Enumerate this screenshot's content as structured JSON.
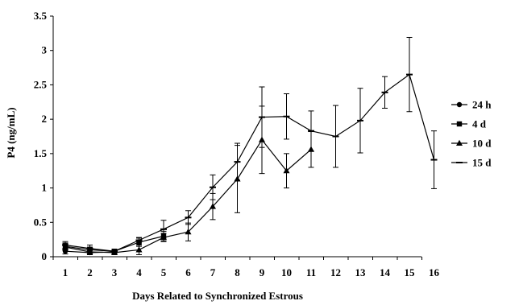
{
  "chart_data": {
    "type": "line",
    "title": "",
    "xlabel": "Days Related to Synchronized Estrous",
    "ylabel": "P4 (ng/mL)",
    "ylim": [
      0,
      3.5
    ],
    "yticks": [
      "0",
      "0.5",
      "1",
      "1.5",
      "2",
      "2.5",
      "3",
      "3.5"
    ],
    "xticks": [
      "1",
      "2",
      "3",
      "4",
      "5",
      "6",
      "7",
      "8",
      "9",
      "10",
      "11",
      "12",
      "13",
      "14",
      "15",
      "16"
    ],
    "legend_position": "right",
    "grid": false,
    "series": [
      {
        "name": "24 h",
        "marker": "circle",
        "points": [
          {
            "x": 1,
            "y": 0.08,
            "err": 0.04
          },
          {
            "x": 2,
            "y": 0.06,
            "err": 0.03
          },
          {
            "x": 3,
            "y": 0.07,
            "err": 0.03
          }
        ]
      },
      {
        "name": "4 d",
        "marker": "square",
        "points": [
          {
            "x": 1,
            "y": 0.15,
            "err": 0.05
          },
          {
            "x": 2,
            "y": 0.1,
            "err": 0.04
          },
          {
            "x": 3,
            "y": 0.08,
            "err": 0.03
          },
          {
            "x": 4,
            "y": 0.21,
            "err": 0.06
          },
          {
            "x": 5,
            "y": 0.3,
            "err": 0.07
          }
        ]
      },
      {
        "name": "10 d",
        "marker": "triangle",
        "points": [
          {
            "x": 1,
            "y": 0.14,
            "err": 0.05
          },
          {
            "x": 2,
            "y": 0.07,
            "err": 0.04
          },
          {
            "x": 3,
            "y": 0.06,
            "err": 0.03
          },
          {
            "x": 4,
            "y": 0.1,
            "err": 0.07
          },
          {
            "x": 5,
            "y": 0.28,
            "err": 0.06
          },
          {
            "x": 6,
            "y": 0.36,
            "err": 0.13
          },
          {
            "x": 7,
            "y": 0.73,
            "err": 0.19
          },
          {
            "x": 8,
            "y": 1.13,
            "err": 0.49
          },
          {
            "x": 9,
            "y": 1.7,
            "err": 0.49
          },
          {
            "x": 10,
            "y": 1.25,
            "err": 0.25
          },
          {
            "x": 11,
            "y": 1.56,
            "err": 0.26
          }
        ]
      },
      {
        "name": "15 d",
        "marker": "dash",
        "points": [
          {
            "x": 1,
            "y": 0.17,
            "err": 0.05
          },
          {
            "x": 2,
            "y": 0.12,
            "err": 0.05
          },
          {
            "x": 3,
            "y": 0.08,
            "err": 0.03
          },
          {
            "x": 4,
            "y": 0.24,
            "err": 0.04
          },
          {
            "x": 5,
            "y": 0.4,
            "err": 0.13
          },
          {
            "x": 6,
            "y": 0.57,
            "err": 0.1
          },
          {
            "x": 7,
            "y": 1.01,
            "err": 0.18
          },
          {
            "x": 8,
            "y": 1.38,
            "err": 0.27
          },
          {
            "x": 9,
            "y": 2.03,
            "err": 0.44
          },
          {
            "x": 10,
            "y": 2.04,
            "err": 0.33
          },
          {
            "x": 11,
            "y": 1.83,
            "err": 0.29
          },
          {
            "x": 12,
            "y": 1.75,
            "err": 0.45
          },
          {
            "x": 13,
            "y": 1.98,
            "err": 0.47
          },
          {
            "x": 14,
            "y": 2.39,
            "err": 0.23
          },
          {
            "x": 15,
            "y": 2.65,
            "err": 0.54
          },
          {
            "x": 16,
            "y": 1.41,
            "err": 0.42
          }
        ]
      }
    ]
  }
}
